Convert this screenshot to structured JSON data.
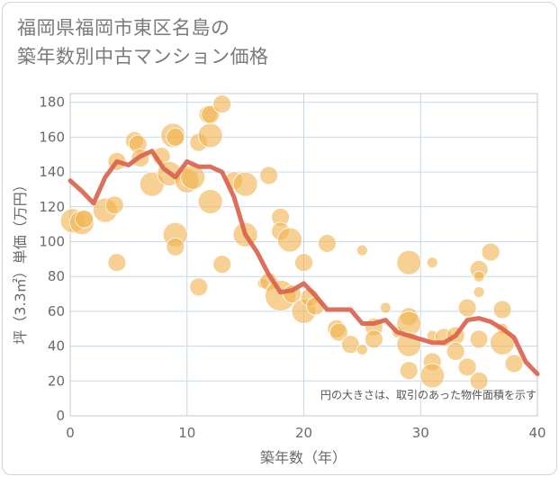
{
  "title_lines": [
    "福岡県福岡市東区名島の",
    "築年数別中古マンション価格"
  ],
  "chart_data": {
    "type": "scatter",
    "xlabel": "築年数（年）",
    "ylabel": "坪（3.3㎡）単価（万円）",
    "xlim": [
      0,
      40
    ],
    "ylim": [
      0,
      185
    ],
    "xticks": [
      0,
      10,
      20,
      30,
      40
    ],
    "yticks": [
      0,
      20,
      40,
      60,
      80,
      100,
      120,
      140,
      160,
      180
    ],
    "grid": true,
    "note": "円の大きさは、取引のあった物件面積を示す",
    "colors": {
      "bubble": "#f2b34d",
      "line": "#d9604a",
      "grid": "#c6d9ec"
    },
    "scatter_points": [
      {
        "x": 0.2,
        "y": 112,
        "s": 3
      },
      {
        "x": 1,
        "y": 111,
        "s": 3
      },
      {
        "x": 1.2,
        "y": 113,
        "s": 2
      },
      {
        "x": 3,
        "y": 118,
        "s": 3
      },
      {
        "x": 3.8,
        "y": 121,
        "s": 2
      },
      {
        "x": 4,
        "y": 146,
        "s": 2
      },
      {
        "x": 4,
        "y": 88,
        "s": 2
      },
      {
        "x": 5.5,
        "y": 158,
        "s": 2
      },
      {
        "x": 5.8,
        "y": 156,
        "s": 2
      },
      {
        "x": 6,
        "y": 148,
        "s": 2
      },
      {
        "x": 7,
        "y": 133,
        "s": 3
      },
      {
        "x": 7.8,
        "y": 149,
        "s": 2
      },
      {
        "x": 8.5,
        "y": 139,
        "s": 3
      },
      {
        "x": 8.8,
        "y": 161,
        "s": 3
      },
      {
        "x": 9,
        "y": 160,
        "s": 2
      },
      {
        "x": 9,
        "y": 104,
        "s": 3
      },
      {
        "x": 9,
        "y": 97,
        "s": 2
      },
      {
        "x": 10,
        "y": 135,
        "s": 3
      },
      {
        "x": 10.5,
        "y": 137,
        "s": 3
      },
      {
        "x": 11,
        "y": 157,
        "s": 2
      },
      {
        "x": 11,
        "y": 74,
        "s": 2
      },
      {
        "x": 11.8,
        "y": 173,
        "s": 2
      },
      {
        "x": 12,
        "y": 173,
        "s": 2
      },
      {
        "x": 12,
        "y": 161,
        "s": 3
      },
      {
        "x": 12,
        "y": 123,
        "s": 3
      },
      {
        "x": 13,
        "y": 179,
        "s": 2
      },
      {
        "x": 13,
        "y": 87,
        "s": 2
      },
      {
        "x": 14,
        "y": 135,
        "s": 2
      },
      {
        "x": 15,
        "y": 133,
        "s": 3
      },
      {
        "x": 15,
        "y": 104,
        "s": 3
      },
      {
        "x": 16.5,
        "y": 76,
        "s": 1
      },
      {
        "x": 17,
        "y": 138,
        "s": 2
      },
      {
        "x": 17,
        "y": 77,
        "s": 2
      },
      {
        "x": 18,
        "y": 114,
        "s": 2
      },
      {
        "x": 18,
        "y": 106,
        "s": 2
      },
      {
        "x": 18,
        "y": 69,
        "s": 4
      },
      {
        "x": 18.8,
        "y": 101,
        "s": 3
      },
      {
        "x": 19,
        "y": 70,
        "s": 2
      },
      {
        "x": 20,
        "y": 88,
        "s": 2
      },
      {
        "x": 20,
        "y": 60,
        "s": 3
      },
      {
        "x": 20.5,
        "y": 68,
        "s": 2
      },
      {
        "x": 21,
        "y": 63,
        "s": 2
      },
      {
        "x": 22,
        "y": 99,
        "s": 2
      },
      {
        "x": 22.8,
        "y": 50,
        "s": 2
      },
      {
        "x": 23,
        "y": 48,
        "s": 2
      },
      {
        "x": 24,
        "y": 41,
        "s": 2
      },
      {
        "x": 25,
        "y": 95,
        "s": 1
      },
      {
        "x": 25,
        "y": 38,
        "s": 1
      },
      {
        "x": 26,
        "y": 51,
        "s": 2
      },
      {
        "x": 26,
        "y": 44,
        "s": 2
      },
      {
        "x": 27,
        "y": 62,
        "s": 1
      },
      {
        "x": 28,
        "y": 48,
        "s": 1
      },
      {
        "x": 29,
        "y": 88,
        "s": 3
      },
      {
        "x": 29,
        "y": 57,
        "s": 2
      },
      {
        "x": 29,
        "y": 53,
        "s": 3
      },
      {
        "x": 29,
        "y": 41,
        "s": 3
      },
      {
        "x": 29,
        "y": 26,
        "s": 2
      },
      {
        "x": 31,
        "y": 88,
        "s": 1
      },
      {
        "x": 31,
        "y": 46,
        "s": 1
      },
      {
        "x": 31,
        "y": 31,
        "s": 2
      },
      {
        "x": 31,
        "y": 23,
        "s": 3
      },
      {
        "x": 32,
        "y": 45,
        "s": 2
      },
      {
        "x": 33,
        "y": 46,
        "s": 2
      },
      {
        "x": 33,
        "y": 37,
        "s": 2
      },
      {
        "x": 34,
        "y": 62,
        "s": 2
      },
      {
        "x": 34,
        "y": 28,
        "s": 2
      },
      {
        "x": 35,
        "y": 84,
        "s": 2
      },
      {
        "x": 35,
        "y": 80,
        "s": 1
      },
      {
        "x": 35,
        "y": 71,
        "s": 1
      },
      {
        "x": 35,
        "y": 44,
        "s": 2
      },
      {
        "x": 35,
        "y": 20,
        "s": 2
      },
      {
        "x": 36,
        "y": 94,
        "s": 2
      },
      {
        "x": 37,
        "y": 61,
        "s": 2
      },
      {
        "x": 37,
        "y": 50,
        "s": 1
      },
      {
        "x": 37,
        "y": 42,
        "s": 3
      },
      {
        "x": 38,
        "y": 30,
        "s": 2
      }
    ],
    "line": {
      "x": [
        0,
        1,
        2,
        3,
        4,
        5,
        6,
        7,
        8,
        9,
        10,
        11,
        12,
        13,
        14,
        15,
        16,
        17,
        18,
        19,
        20,
        21,
        22,
        23,
        24,
        25,
        26,
        27,
        28,
        29,
        30,
        31,
        32,
        33,
        34,
        35,
        36,
        37,
        38,
        39,
        40
      ],
      "y": [
        135,
        129,
        122,
        137,
        146,
        144,
        149,
        152,
        142,
        137,
        146,
        143,
        143,
        140,
        126,
        104,
        94,
        81,
        71,
        72,
        76,
        69,
        61,
        61,
        61,
        53,
        53,
        55,
        48,
        46,
        44,
        42,
        42,
        46,
        55,
        56,
        54,
        50,
        45,
        31,
        24
      ]
    }
  }
}
